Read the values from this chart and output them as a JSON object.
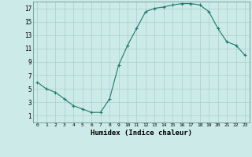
{
  "x": [
    0,
    1,
    2,
    3,
    4,
    5,
    6,
    7,
    8,
    9,
    10,
    11,
    12,
    13,
    14,
    15,
    16,
    17,
    18,
    19,
    20,
    21,
    22,
    23
  ],
  "y": [
    6,
    5,
    4.5,
    3.5,
    2.5,
    2,
    1.5,
    1.5,
    3.5,
    8.5,
    11.5,
    14,
    16.5,
    17,
    17.2,
    17.5,
    17.7,
    17.7,
    17.5,
    16.5,
    14,
    12,
    11.5,
    10
  ],
  "line_color": "#1a7a6e",
  "marker": "+",
  "marker_size": 4,
  "bg_color": "#cceae8",
  "grid_color": "#aad0cc",
  "xlabel": "Humidex (Indice chaleur)",
  "xlim": [
    -0.5,
    23.5
  ],
  "ylim": [
    0,
    18
  ],
  "yticks": [
    1,
    3,
    5,
    7,
    9,
    11,
    13,
    15,
    17
  ],
  "xticks": [
    0,
    1,
    2,
    3,
    4,
    5,
    6,
    7,
    8,
    9,
    10,
    11,
    12,
    13,
    14,
    15,
    16,
    17,
    18,
    19,
    20,
    21,
    22,
    23
  ],
  "xtick_labels": [
    "0",
    "1",
    "2",
    "3",
    "4",
    "5",
    "6",
    "7",
    "8",
    "9",
    "10",
    "11",
    "12",
    "13",
    "14",
    "15",
    "16",
    "17",
    "18",
    "19",
    "20",
    "21",
    "22",
    "23"
  ]
}
